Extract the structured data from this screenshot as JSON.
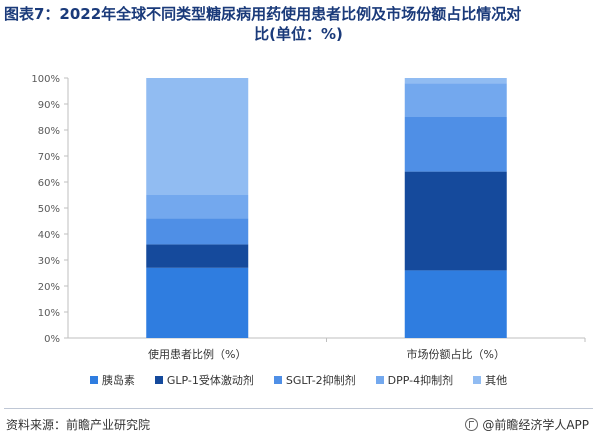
{
  "header": {
    "title_line1": "图表7：2022年全球不同类型糖尿病用药使用患者比例及市场份额占比情况对",
    "title_line2": "比(单位：%)"
  },
  "colors": {
    "insulin": "#2f7de0",
    "glp1": "#154a9c",
    "sglt2": "#4f8fe6",
    "dpp4": "#73a8ee",
    "other": "#91bcf2",
    "axis": "#bfbfbf"
  },
  "chart_data": {
    "type": "bar",
    "stacked": true,
    "title": "2022年全球不同类型糖尿病用药使用患者比例及市场份额占比情况对比(单位：%)",
    "categories": [
      "使用患者比例（%）",
      "市场份额占比（%）"
    ],
    "series": [
      {
        "name": "胰岛素",
        "values": [
          27,
          26
        ]
      },
      {
        "name": "GLP-1受体激动剂",
        "values": [
          9,
          38
        ]
      },
      {
        "name": "SGLT-2抑制剂",
        "values": [
          10,
          21
        ]
      },
      {
        "name": "DPP-4抑制剂",
        "values": [
          9,
          13
        ]
      },
      {
        "name": "其他",
        "values": [
          45,
          2
        ]
      }
    ],
    "ylim": [
      0,
      100
    ],
    "yticks": [
      "0%",
      "10%",
      "20%",
      "30%",
      "40%",
      "50%",
      "60%",
      "70%",
      "80%",
      "90%",
      "100%"
    ],
    "xlabel": "",
    "ylabel": "",
    "legend_position": "bottom",
    "grid": false
  },
  "footer": {
    "source": "资料来源：前瞻产业研究院",
    "brand": "@前瞻经济学人APP"
  },
  "watermark": {
    "text": "前瞻产业研究院"
  }
}
